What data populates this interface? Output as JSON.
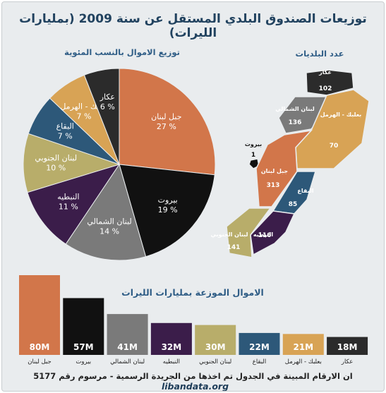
{
  "title": "توزيعات الصندوق البلدي المستقل عن سنة 2009 (بمليارات الليرات)",
  "pie": {
    "title": "توزيع الاموال بالنسب المئوية"
  },
  "map": {
    "title": "عدد البلديات",
    "regions": [
      {
        "name": "عكار",
        "value": "102",
        "color": "#2b2b2b"
      },
      {
        "name": "لبنان الشمالي",
        "value": "136",
        "color": "#7a7a7a"
      },
      {
        "name": "بعلبك - الهرمل",
        "value": "70",
        "color": "#d8a355"
      },
      {
        "name": "بيروت",
        "value": "1",
        "color": "#111111"
      },
      {
        "name": "جبل لبنان",
        "value": "313",
        "color": "#d2764a"
      },
      {
        "name": "البقاع",
        "value": "85",
        "color": "#2d5879"
      },
      {
        "name": "النبطيه",
        "value": "116",
        "color": "#3b1d4a"
      },
      {
        "name": "لبنان الجنوبي",
        "value": "141",
        "color": "#b8ad6a"
      }
    ]
  },
  "bar": {
    "title": "الاموال الموزعة بمليارات الليرات"
  },
  "chart_data": [
    {
      "type": "pie",
      "title": "توزيع الاموال بالنسب المئوية",
      "categories": [
        "جبل لبنان",
        "بيروت",
        "لبنان الشمالي",
        "النبطيه",
        "لبنان الجنوبي",
        "البقاع",
        "بعلبك - الهرمل",
        "عكار"
      ],
      "values": [
        27,
        19,
        14,
        11,
        10,
        7,
        7,
        6
      ],
      "labels": [
        "27 %",
        "19 %",
        "14 %",
        "11 %",
        "10 %",
        "7 %",
        "7 %",
        "6 %"
      ],
      "colors": [
        "#d2764a",
        "#111111",
        "#7a7a7a",
        "#3b1d4a",
        "#b8ad6a",
        "#2d5879",
        "#d8a355",
        "#2b2b2b"
      ]
    },
    {
      "type": "bar",
      "title": "الاموال الموزعة بمليارات الليرات",
      "categories": [
        "جبل لبنان",
        "بيروت",
        "لبنان الشمالي",
        "النبطيه",
        "لبنان الجنوبي",
        "البقاع",
        "بعلبك - الهرمل",
        "عكار"
      ],
      "values": [
        80,
        57,
        41,
        32,
        30,
        22,
        21,
        18
      ],
      "labels": [
        "80M",
        "57M",
        "41M",
        "32M",
        "30M",
        "22M",
        "21M",
        "18M"
      ],
      "colors": [
        "#d2764a",
        "#111111",
        "#7a7a7a",
        "#3b1d4a",
        "#b8ad6a",
        "#2d5879",
        "#d8a355",
        "#2b2b2b"
      ]
    }
  ],
  "footer": {
    "note": "ان الارقام المبينة في الجدول تم اخذها من الجريدة الرسمية - مرسوم رقم 5177",
    "site": "libandata.org"
  }
}
